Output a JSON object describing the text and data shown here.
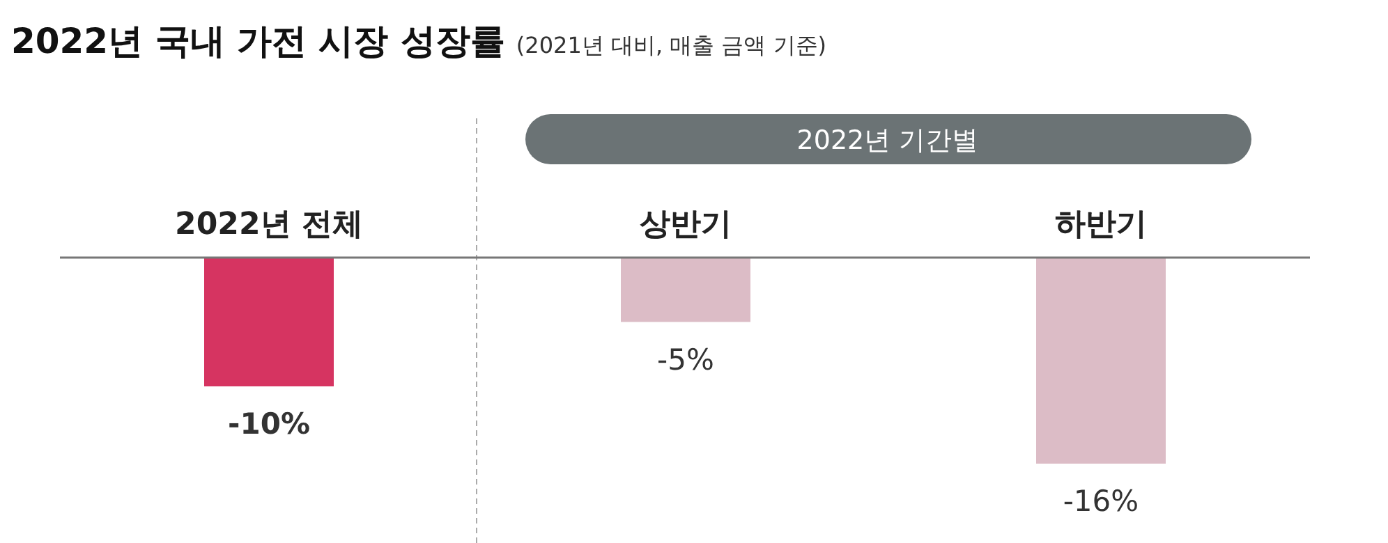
{
  "chart_data": {
    "type": "bar",
    "title": "2022년 국내 가전 시장 성장률",
    "subtitle": "(2021년 대비, 매출 금액 기준)",
    "categories": [
      "2022년 전체",
      "상반기",
      "하반기"
    ],
    "values": [
      -10,
      -5,
      -16
    ],
    "colors": [
      "#d63461",
      "#dcbcc6",
      "#dcbcc6"
    ],
    "value_labels": [
      "-10%",
      "-5%",
      "-16%"
    ],
    "annotations": [
      "2022년 기간별"
    ]
  }
}
